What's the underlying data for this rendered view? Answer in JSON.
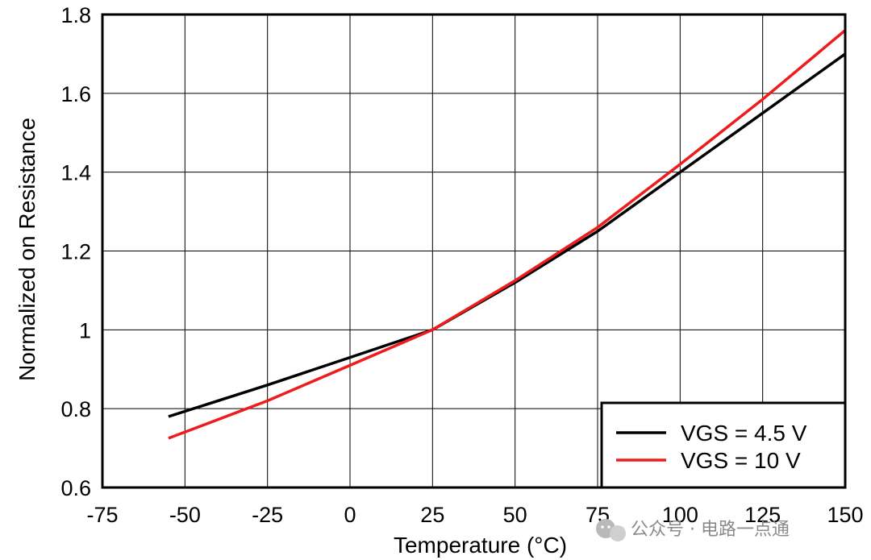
{
  "chart_data": {
    "type": "line",
    "title": "",
    "xlabel": "Temperature (°C)",
    "ylabel": "Normalized on Resistance",
    "xlim": [
      -75,
      150
    ],
    "ylim": [
      0.6,
      1.8
    ],
    "xticks": [
      -75,
      -50,
      -25,
      0,
      25,
      50,
      75,
      100,
      125,
      150
    ],
    "xtick_labels": [
      "-75",
      "-50",
      "-25",
      "0",
      "25",
      "50",
      "75",
      "100",
      "125",
      "150"
    ],
    "yticks": [
      0.6,
      0.8,
      1.0,
      1.2,
      1.4,
      1.6,
      1.8
    ],
    "ytick_labels": [
      "0.6",
      "0.8",
      "1",
      "1.2",
      "1.4",
      "1.6",
      "1.8"
    ],
    "grid": true,
    "legend": {
      "position": "bottom-right"
    },
    "series": [
      {
        "name": "VGS = 4.5 V",
        "color": "#000000",
        "points": [
          [
            -55,
            0.78
          ],
          [
            -25,
            0.86
          ],
          [
            0,
            0.93
          ],
          [
            25,
            1.0
          ],
          [
            50,
            1.12
          ],
          [
            75,
            1.25
          ],
          [
            100,
            1.4
          ],
          [
            125,
            1.55
          ],
          [
            150,
            1.7
          ]
        ]
      },
      {
        "name": "VGS = 10 V",
        "color": "#ee1c1c",
        "points": [
          [
            -55,
            0.725
          ],
          [
            -25,
            0.82
          ],
          [
            0,
            0.91
          ],
          [
            25,
            1.0
          ],
          [
            50,
            1.125
          ],
          [
            75,
            1.26
          ],
          [
            100,
            1.42
          ],
          [
            125,
            1.585
          ],
          [
            150,
            1.76
          ]
        ]
      }
    ]
  },
  "watermark": {
    "icon": "wechat-icon",
    "text": "公众号 · 电路一点通"
  }
}
